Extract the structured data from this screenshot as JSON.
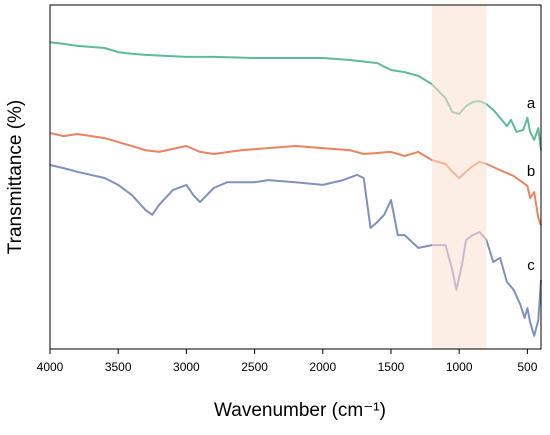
{
  "chart_data": {
    "type": "line",
    "x_label": "Wavenumber (cm⁻¹)",
    "y_label": "Transmittance (%)",
    "xlim": [
      4000,
      400
    ],
    "xticks": [
      4000,
      3500,
      3000,
      2500,
      2000,
      1500,
      1000,
      500
    ],
    "ylim": [
      0,
      100
    ],
    "highlight": [
      1200,
      800
    ],
    "series": [
      {
        "name": "a",
        "color": "#5dbb9a",
        "x": [
          4000,
          3900,
          3800,
          3600,
          3500,
          3400,
          3300,
          3000,
          2800,
          2500,
          2000,
          1800,
          1600,
          1500,
          1400,
          1300,
          1200,
          1100,
          1050,
          1000,
          950,
          900,
          850,
          800,
          750,
          700,
          650,
          620,
          580,
          530,
          500,
          480,
          450,
          420,
          400
        ],
        "values": [
          89.2,
          88.7,
          88.1,
          87.5,
          86.3,
          85.8,
          85.5,
          84.9,
          84.9,
          84.6,
          84.6,
          84.0,
          83.1,
          81.1,
          80.5,
          79.4,
          77.0,
          72.9,
          68.9,
          68.3,
          70.6,
          71.8,
          72.1,
          71.2,
          69.5,
          67.2,
          64.8,
          66.6,
          63.1,
          63.7,
          67.2,
          63.1,
          60.8,
          64.2,
          57.8
        ]
      },
      {
        "name": "b",
        "color": "#e8845f",
        "x": [
          4000,
          3900,
          3800,
          3600,
          3400,
          3300,
          3200,
          3000,
          2900,
          2800,
          2600,
          2400,
          2200,
          2000,
          1800,
          1700,
          1500,
          1400,
          1300,
          1200,
          1100,
          1050,
          1000,
          950,
          900,
          850,
          800,
          700,
          600,
          500,
          480,
          450,
          420,
          400
        ],
        "values": [
          62.8,
          61.9,
          62.5,
          61.3,
          59.0,
          57.8,
          57.3,
          59.0,
          57.3,
          56.7,
          57.8,
          58.4,
          59.0,
          58.4,
          57.8,
          56.7,
          57.3,
          56.1,
          57.3,
          54.9,
          53.8,
          51.5,
          49.7,
          51.5,
          53.2,
          54.4,
          53.8,
          52.0,
          50.3,
          47.4,
          43.9,
          45.6,
          38.1,
          36.0
        ]
      },
      {
        "name": "c",
        "color": "#7f91c0",
        "x": [
          4000,
          3900,
          3800,
          3600,
          3500,
          3400,
          3300,
          3250,
          3200,
          3100,
          3000,
          2950,
          2900,
          2800,
          2700,
          2500,
          2400,
          2200,
          2000,
          1850,
          1750,
          1700,
          1650,
          1600,
          1550,
          1500,
          1450,
          1400,
          1300,
          1200,
          1100,
          1050,
          1020,
          980,
          950,
          900,
          850,
          800,
          750,
          700,
          650,
          600,
          550,
          520,
          500,
          480,
          450,
          420,
          400
        ],
        "values": [
          53.5,
          52.6,
          51.5,
          49.7,
          47.7,
          44.8,
          40.4,
          39.0,
          41.9,
          46.2,
          47.7,
          44.8,
          42.7,
          46.8,
          48.5,
          48.5,
          49.1,
          48.5,
          47.7,
          49.1,
          50.6,
          49.7,
          35.2,
          36.9,
          39.0,
          43.3,
          33.1,
          33.1,
          29.4,
          30.2,
          30.2,
          23.0,
          17.2,
          24.4,
          31.7,
          33.1,
          34.0,
          31.7,
          25.3,
          26.5,
          19.5,
          17.2,
          12.8,
          9.0,
          11.9,
          7.8,
          3.8,
          8.4,
          20.1
        ]
      }
    ]
  }
}
